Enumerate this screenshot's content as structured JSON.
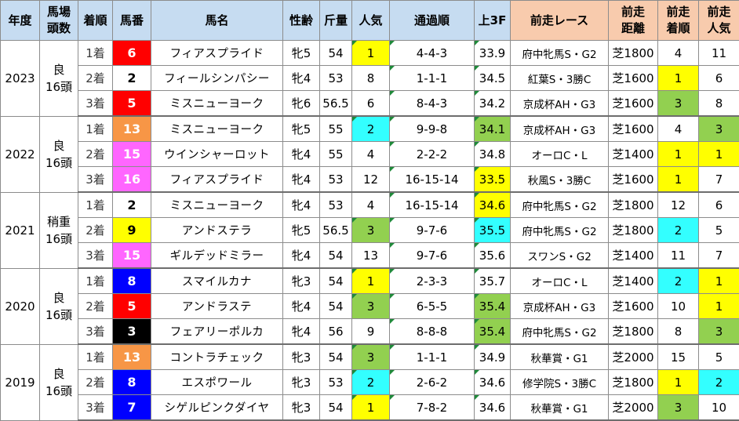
{
  "headers": [
    {
      "key": "year",
      "label": "年度"
    },
    {
      "key": "cond",
      "label": "馬場\n頭数"
    },
    {
      "key": "place",
      "label": "着順"
    },
    {
      "key": "num",
      "label": "馬番"
    },
    {
      "key": "name",
      "label": "馬名"
    },
    {
      "key": "sexage",
      "label": "性齢"
    },
    {
      "key": "weight",
      "label": "斤量"
    },
    {
      "key": "pop",
      "label": "人気"
    },
    {
      "key": "pass",
      "label": "通過順"
    },
    {
      "key": "l3f",
      "label": "上3F"
    },
    {
      "key": "prev_race",
      "label": "前走レース"
    },
    {
      "key": "prev_dist",
      "label": "前走\n距離"
    },
    {
      "key": "prev_place",
      "label": "前走\n着順"
    },
    {
      "key": "prev_pop",
      "label": "前走\n人気"
    }
  ],
  "colors": {
    "header_blue": "#c6dcf1",
    "header_salmon": "#f8cbad",
    "yellow": "#ffff00",
    "cyan": "#33ffff",
    "green": "#92d050",
    "gate_red": "#ff0000",
    "gate_white": "#ffffff",
    "gate_black": "#000000",
    "gate_blue": "#0000ff",
    "gate_yellow": "#ffff00",
    "gate_orange": "#f79646",
    "gate_pink": "#ff66ff"
  },
  "groups": [
    {
      "year": "2023",
      "going": "良",
      "runners": "16頭",
      "rows": [
        {
          "place": "1着",
          "num": "6",
          "num_color": "gate_red",
          "name": "フィアスプライド",
          "sexage": "牝5",
          "weight": "54",
          "pop": "1",
          "pop_color": "yellow",
          "pass": "4-4-3",
          "l3f": "33.9",
          "l3f_color": "",
          "prev_race": "府中牝馬S・G2",
          "prev_dist": "芝1800",
          "prev_place": "4",
          "prev_place_color": "",
          "prev_pop": "11",
          "prev_pop_color": ""
        },
        {
          "place": "2着",
          "num": "2",
          "num_color": "gate_white",
          "name": "フィールシンパシー",
          "sexage": "牝4",
          "weight": "53",
          "pop": "8",
          "pop_color": "",
          "pass": "1-1-1",
          "l3f": "34.5",
          "l3f_color": "",
          "prev_race": "紅葉S・3勝C",
          "prev_dist": "芝1600",
          "prev_place": "1",
          "prev_place_color": "yellow",
          "prev_pop": "6",
          "prev_pop_color": ""
        },
        {
          "place": "3着",
          "num": "5",
          "num_color": "gate_red",
          "name": "ミスニューヨーク",
          "sexage": "牝6",
          "weight": "56.5",
          "pop": "6",
          "pop_color": "",
          "pass": "8-4-3",
          "l3f": "34.2",
          "l3f_color": "",
          "prev_race": "京成杯AH・G3",
          "prev_dist": "芝1600",
          "prev_place": "3",
          "prev_place_color": "green",
          "prev_pop": "8",
          "prev_pop_color": ""
        }
      ]
    },
    {
      "year": "2022",
      "going": "良",
      "runners": "16頭",
      "rows": [
        {
          "place": "1着",
          "num": "13",
          "num_color": "gate_orange",
          "name": "ミスニューヨーク",
          "sexage": "牝5",
          "weight": "55",
          "pop": "2",
          "pop_color": "cyan",
          "pass": "9-9-8",
          "l3f": "34.1",
          "l3f_color": "green",
          "prev_race": "京成杯AH・G3",
          "prev_dist": "芝1600",
          "prev_place": "4",
          "prev_place_color": "",
          "prev_pop": "3",
          "prev_pop_color": "green"
        },
        {
          "place": "2着",
          "num": "15",
          "num_color": "gate_pink",
          "name": "ウインシャーロット",
          "sexage": "牝4",
          "weight": "55",
          "pop": "4",
          "pop_color": "",
          "pass": "2-2-2",
          "l3f": "34.8",
          "l3f_color": "",
          "prev_race": "オーロC・L",
          "prev_dist": "芝1400",
          "prev_place": "1",
          "prev_place_color": "yellow",
          "prev_pop": "1",
          "prev_pop_color": "yellow"
        },
        {
          "place": "3着",
          "num": "16",
          "num_color": "gate_pink",
          "name": "フィアスプライド",
          "sexage": "牝4",
          "weight": "53",
          "pop": "12",
          "pop_color": "",
          "pass": "16-15-14",
          "l3f": "33.5",
          "l3f_color": "yellow",
          "prev_race": "秋風S・3勝C",
          "prev_dist": "芝1600",
          "prev_place": "1",
          "prev_place_color": "yellow",
          "prev_pop": "7",
          "prev_pop_color": ""
        }
      ]
    },
    {
      "year": "2021",
      "going": "稍重",
      "runners": "16頭",
      "rows": [
        {
          "place": "1着",
          "num": "2",
          "num_color": "gate_white",
          "name": "ミスニューヨーク",
          "sexage": "牝4",
          "weight": "53",
          "pop": "4",
          "pop_color": "",
          "pass": "16-15-14",
          "l3f": "34.6",
          "l3f_color": "yellow",
          "prev_race": "府中牝馬S・G2",
          "prev_dist": "芝1800",
          "prev_place": "12",
          "prev_place_color": "",
          "prev_pop": "6",
          "prev_pop_color": ""
        },
        {
          "place": "2着",
          "num": "9",
          "num_color": "gate_yellow",
          "name": "アンドステラ",
          "sexage": "牝5",
          "weight": "56.5",
          "pop": "3",
          "pop_color": "green",
          "pass": "9-7-6",
          "l3f": "35.5",
          "l3f_color": "cyan",
          "prev_race": "府中牝馬S・G2",
          "prev_dist": "芝1800",
          "prev_place": "2",
          "prev_place_color": "cyan",
          "prev_pop": "5",
          "prev_pop_color": ""
        },
        {
          "place": "3着",
          "num": "15",
          "num_color": "gate_pink",
          "name": "ギルデッドミラー",
          "sexage": "牝4",
          "weight": "54",
          "pop": "13",
          "pop_color": "",
          "pass": "9-7-6",
          "l3f": "35.6",
          "l3f_color": "",
          "prev_race": "スワンS・G2",
          "prev_dist": "芝1400",
          "prev_place": "11",
          "prev_place_color": "",
          "prev_pop": "7",
          "prev_pop_color": ""
        }
      ]
    },
    {
      "year": "2020",
      "going": "良",
      "runners": "16頭",
      "rows": [
        {
          "place": "1着",
          "num": "8",
          "num_color": "gate_blue",
          "name": "スマイルカナ",
          "sexage": "牝3",
          "weight": "54",
          "pop": "1",
          "pop_color": "yellow",
          "pass": "2-3-3",
          "l3f": "35.7",
          "l3f_color": "",
          "prev_race": "オーロC・L",
          "prev_dist": "芝1400",
          "prev_place": "2",
          "prev_place_color": "cyan",
          "prev_pop": "1",
          "prev_pop_color": "yellow"
        },
        {
          "place": "2着",
          "num": "5",
          "num_color": "gate_red",
          "name": "アンドラステ",
          "sexage": "牝4",
          "weight": "54",
          "pop": "3",
          "pop_color": "green",
          "pass": "6-5-5",
          "l3f": "35.4",
          "l3f_color": "green",
          "prev_race": "京成杯AH・G3",
          "prev_dist": "芝1600",
          "prev_place": "10",
          "prev_place_color": "",
          "prev_pop": "1",
          "prev_pop_color": "yellow"
        },
        {
          "place": "3着",
          "num": "3",
          "num_color": "gate_black",
          "name": "フェアリーポルカ",
          "sexage": "牝4",
          "weight": "56",
          "pop": "9",
          "pop_color": "",
          "pass": "8-8-8",
          "l3f": "35.4",
          "l3f_color": "green",
          "prev_race": "府中牝馬S・G2",
          "prev_dist": "芝1800",
          "prev_place": "8",
          "prev_place_color": "",
          "prev_pop": "3",
          "prev_pop_color": "green"
        }
      ]
    },
    {
      "year": "2019",
      "going": "良",
      "runners": "16頭",
      "rows": [
        {
          "place": "1着",
          "num": "13",
          "num_color": "gate_orange",
          "name": "コントラチェック",
          "sexage": "牝3",
          "weight": "54",
          "pop": "3",
          "pop_color": "green",
          "pass": "1-1-1",
          "l3f": "34.9",
          "l3f_color": "",
          "prev_race": "秋華賞・G1",
          "prev_dist": "芝2000",
          "prev_place": "15",
          "prev_place_color": "",
          "prev_pop": "5",
          "prev_pop_color": ""
        },
        {
          "place": "2着",
          "num": "8",
          "num_color": "gate_blue",
          "name": "エスポワール",
          "sexage": "牝3",
          "weight": "53",
          "pop": "2",
          "pop_color": "cyan",
          "pass": "2-6-2",
          "l3f": "34.6",
          "l3f_color": "",
          "prev_race": "修学院S・3勝C",
          "prev_dist": "芝1800",
          "prev_place": "1",
          "prev_place_color": "yellow",
          "prev_pop": "2",
          "prev_pop_color": "cyan"
        },
        {
          "place": "3着",
          "num": "7",
          "num_color": "gate_blue",
          "name": "シゲルピンクダイヤ",
          "sexage": "牝3",
          "weight": "54",
          "pop": "1",
          "pop_color": "yellow",
          "pass": "7-8-2",
          "l3f": "34.6",
          "l3f_color": "",
          "prev_race": "秋華賞・G1",
          "prev_dist": "芝2000",
          "prev_place": "3",
          "prev_place_color": "green",
          "prev_pop": "10",
          "prev_pop_color": ""
        }
      ]
    }
  ]
}
